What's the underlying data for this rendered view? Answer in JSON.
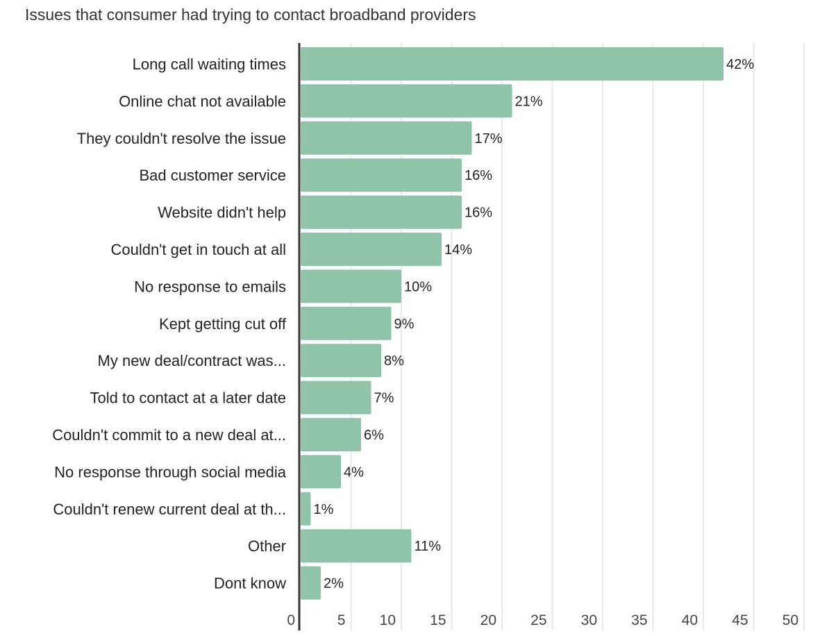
{
  "chart_data": {
    "type": "bar",
    "orientation": "horizontal",
    "title": "Issues that consumer had trying to contact broadband providers",
    "categories": [
      "Long call waiting times",
      "Online chat not available",
      "They couldn't resolve the issue",
      "Bad customer service",
      "Website didn't help",
      "Couldn't get in touch at all",
      "No response to emails",
      "Kept getting cut off",
      "My new deal/contract was...",
      "Told to contact at a later date",
      "Couldn't commit to a new deal at...",
      "No response through social media",
      "Couldn't renew current deal at th...",
      "Other",
      "Dont know"
    ],
    "values": [
      42,
      21,
      17,
      16,
      16,
      14,
      10,
      9,
      8,
      7,
      6,
      4,
      1,
      11,
      2
    ],
    "data_labels": [
      "42%",
      "21%",
      "17%",
      "16%",
      "16%",
      "14%",
      "10%",
      "9%",
      "8%",
      "7%",
      "6%",
      "4%",
      "1%",
      "11%",
      "2%"
    ],
    "xlim": [
      0,
      50
    ],
    "xticks": [
      "0",
      "5",
      "10",
      "15",
      "20",
      "25",
      "30",
      "35",
      "40",
      "45",
      "50"
    ],
    "grid": true,
    "bar_color": "#8fc4a8"
  }
}
